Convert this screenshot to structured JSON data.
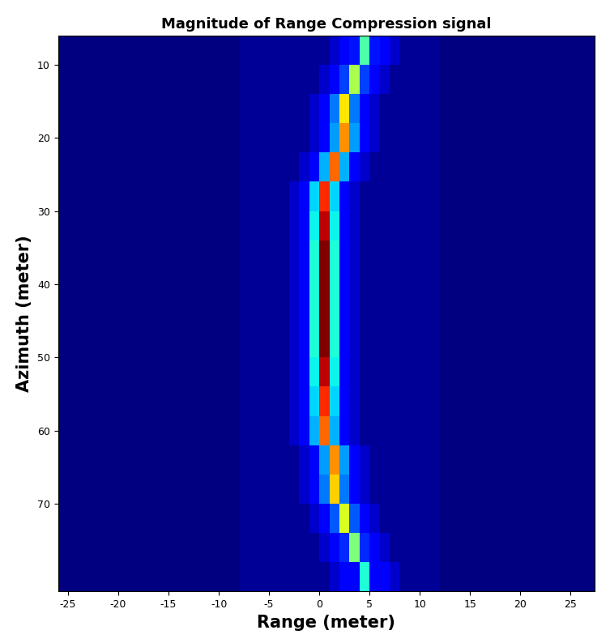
{
  "chart_data": {
    "type": "heatmap",
    "title": "Magnitude of Range Compression signal",
    "x_label": "Range (meter)",
    "y_label": "Azimuth (meter)",
    "xlim": [
      -26,
      27.4
    ],
    "ylim": [
      82,
      6
    ],
    "xticks": [
      -25,
      -20,
      -15,
      -10,
      -5,
      0,
      5,
      10,
      15,
      20,
      25
    ],
    "yticks": [
      10,
      20,
      30,
      40,
      50,
      60,
      70
    ],
    "grid": false,
    "color": "jet",
    "range_edges": [
      -26,
      -21,
      -16,
      -11,
      -8,
      -7,
      -6,
      -5,
      -4,
      -3,
      -2,
      -1,
      0,
      1,
      2,
      3,
      4,
      5,
      6,
      7,
      8,
      9,
      10,
      11,
      12,
      15,
      20,
      25,
      28
    ],
    "azimuth_edges": [
      6,
      10,
      14,
      18,
      22,
      26,
      30,
      34,
      38,
      42,
      46,
      50,
      54,
      58,
      62,
      66,
      70,
      74,
      78,
      82
    ],
    "cells": [
      [
        10,
        10,
        10,
        10,
        12,
        12,
        12,
        12,
        12,
        12,
        12,
        12,
        12,
        16,
        20,
        23,
        50,
        23,
        20,
        16,
        12,
        12,
        12,
        12,
        10,
        10,
        10,
        10
      ],
      [
        10,
        10,
        10,
        10,
        12,
        12,
        12,
        12,
        12,
        12,
        12,
        12,
        16,
        20,
        27,
        60,
        27,
        20,
        16,
        12,
        12,
        12,
        12,
        12,
        10,
        10,
        10,
        10
      ],
      [
        10,
        10,
        10,
        10,
        12,
        12,
        12,
        12,
        12,
        12,
        12,
        16,
        20,
        32,
        70,
        32,
        20,
        16,
        12,
        12,
        12,
        12,
        12,
        12,
        10,
        10,
        10,
        10
      ],
      [
        10,
        10,
        10,
        10,
        12,
        12,
        12,
        12,
        12,
        12,
        12,
        16,
        20,
        35,
        78,
        35,
        20,
        16,
        12,
        12,
        12,
        12,
        12,
        12,
        10,
        10,
        10,
        10
      ],
      [
        10,
        10,
        10,
        10,
        12,
        12,
        12,
        12,
        12,
        12,
        16,
        20,
        37,
        82,
        37,
        20,
        16,
        12,
        12,
        12,
        12,
        12,
        12,
        12,
        10,
        10,
        10,
        10
      ],
      [
        10,
        10,
        10,
        10,
        12,
        12,
        12,
        12,
        12,
        16,
        20,
        40,
        88,
        40,
        20,
        16,
        12,
        12,
        12,
        12,
        12,
        12,
        12,
        12,
        10,
        10,
        10,
        10
      ],
      [
        10,
        10,
        10,
        10,
        12,
        12,
        12,
        12,
        12,
        16,
        20,
        43,
        95,
        43,
        20,
        16,
        12,
        12,
        12,
        12,
        12,
        12,
        12,
        12,
        10,
        10,
        10,
        10
      ],
      [
        10,
        10,
        10,
        10,
        12,
        12,
        12,
        12,
        12,
        16,
        20,
        45,
        100,
        45,
        20,
        16,
        12,
        12,
        12,
        12,
        12,
        12,
        12,
        12,
        10,
        10,
        10,
        10
      ],
      [
        10,
        10,
        10,
        10,
        12,
        12,
        12,
        12,
        12,
        16,
        20,
        45,
        100,
        45,
        20,
        16,
        12,
        12,
        12,
        12,
        12,
        12,
        12,
        12,
        10,
        10,
        10,
        10
      ],
      [
        10,
        10,
        10,
        10,
        12,
        12,
        12,
        12,
        12,
        16,
        20,
        45,
        100,
        45,
        20,
        16,
        12,
        12,
        12,
        12,
        12,
        12,
        12,
        12,
        10,
        10,
        10,
        10
      ],
      [
        10,
        10,
        10,
        10,
        12,
        12,
        12,
        12,
        12,
        16,
        20,
        45,
        100,
        45,
        20,
        16,
        12,
        12,
        12,
        12,
        12,
        12,
        12,
        12,
        10,
        10,
        10,
        10
      ],
      [
        10,
        10,
        10,
        10,
        12,
        12,
        12,
        12,
        12,
        16,
        20,
        43,
        95,
        43,
        20,
        16,
        12,
        12,
        12,
        12,
        12,
        12,
        12,
        12,
        10,
        10,
        10,
        10
      ],
      [
        10,
        10,
        10,
        10,
        12,
        12,
        12,
        12,
        12,
        16,
        20,
        40,
        88,
        40,
        20,
        16,
        12,
        12,
        12,
        12,
        12,
        12,
        12,
        12,
        10,
        10,
        10,
        10
      ],
      [
        10,
        10,
        10,
        10,
        12,
        12,
        12,
        12,
        12,
        16,
        20,
        37,
        82,
        37,
        20,
        16,
        12,
        12,
        12,
        12,
        12,
        12,
        12,
        12,
        10,
        10,
        10,
        10
      ],
      [
        10,
        10,
        10,
        10,
        12,
        12,
        12,
        12,
        12,
        12,
        16,
        20,
        35,
        78,
        35,
        20,
        16,
        12,
        12,
        12,
        12,
        12,
        12,
        12,
        10,
        10,
        10,
        10
      ],
      [
        10,
        10,
        10,
        10,
        12,
        12,
        12,
        12,
        12,
        12,
        16,
        20,
        32,
        72,
        32,
        20,
        16,
        12,
        12,
        12,
        12,
        12,
        12,
        12,
        10,
        10,
        10,
        10
      ],
      [
        10,
        10,
        10,
        10,
        12,
        12,
        12,
        12,
        12,
        12,
        12,
        16,
        20,
        29,
        65,
        29,
        20,
        16,
        12,
        12,
        12,
        12,
        12,
        12,
        10,
        10,
        10,
        10
      ],
      [
        10,
        10,
        10,
        10,
        12,
        12,
        12,
        12,
        12,
        12,
        12,
        12,
        16,
        20,
        25,
        55,
        25,
        20,
        16,
        12,
        12,
        12,
        12,
        12,
        10,
        10,
        10,
        10
      ],
      [
        10,
        10,
        10,
        10,
        12,
        12,
        12,
        12,
        12,
        12,
        12,
        12,
        12,
        16,
        20,
        20,
        45,
        20,
        20,
        16,
        12,
        12,
        12,
        12,
        10,
        10,
        10,
        10
      ]
    ]
  }
}
